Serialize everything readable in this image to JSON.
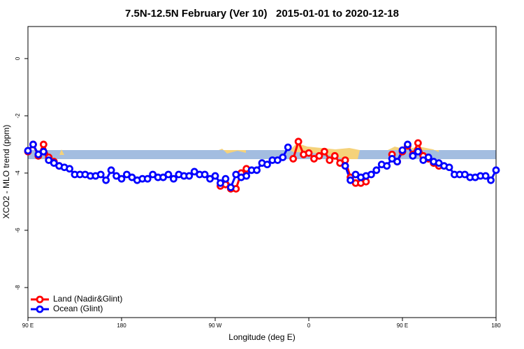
{
  "chart_data": {
    "type": "line",
    "title": "7.5N-12.5N February (Ver 10)   2015-01-01 to 2020-12-18",
    "x_label": "Longitude (deg E)",
    "y_label": "XCO2 - MLO trend (ppm)",
    "xlim": [
      90,
      540
    ],
    "ylim": [
      -9.05,
      1.12
    ],
    "xticks": [
      {
        "value": 90,
        "label": "90 E"
      },
      180,
      {
        "value": 270,
        "label": "90 W"
      },
      {
        "value": 360,
        "label": "0"
      },
      {
        "value": 450,
        "label": "90 E"
      },
      {
        "value": 540,
        "label": "180"
      }
    ],
    "yticks": [
      0,
      -2,
      -4,
      -6,
      -8
    ],
    "legend": "bottom-left",
    "x": [
      90,
      95,
      100,
      105,
      110,
      115,
      120,
      125,
      130,
      135,
      140,
      145,
      150,
      155,
      160,
      165,
      170,
      175,
      180,
      185,
      190,
      195,
      200,
      205,
      210,
      215,
      220,
      225,
      230,
      235,
      240,
      245,
      250,
      255,
      260,
      265,
      270,
      275,
      280,
      285,
      290,
      295,
      300,
      305,
      310,
      315,
      320,
      325,
      330,
      335,
      340,
      345,
      350,
      355,
      360,
      365,
      370,
      375,
      380,
      385,
      390,
      395,
      400,
      405,
      410,
      415,
      420,
      425,
      430,
      435,
      440,
      445,
      450,
      455,
      460,
      465,
      470,
      475,
      480,
      485,
      490,
      495,
      500,
      505,
      510,
      515,
      520,
      525,
      530,
      535,
      540
    ],
    "series": [
      {
        "name": "Land (Nadir&Glint)",
        "color": "#ff0000",
        "values": [
          -3.25,
          -3.0,
          -3.4,
          -3.0,
          -3.45,
          -3.6,
          -3.75,
          null,
          null,
          null,
          null,
          null,
          null,
          null,
          null,
          null,
          null,
          null,
          null,
          null,
          null,
          null,
          null,
          null,
          null,
          null,
          null,
          null,
          null,
          null,
          null,
          null,
          null,
          null,
          null,
          null,
          null,
          -4.45,
          -4.4,
          -4.55,
          -4.55,
          -4.0,
          -3.85,
          null,
          null,
          null,
          null,
          null,
          null,
          null,
          null,
          -3.5,
          -2.9,
          -3.35,
          -3.3,
          -3.5,
          -3.4,
          -3.25,
          -3.55,
          -3.4,
          -3.65,
          -3.55,
          -4.15,
          -4.35,
          -4.35,
          -4.3,
          null,
          null,
          null,
          null,
          -3.35,
          -3.6,
          -3.25,
          -3.05,
          -3.35,
          -2.95,
          -3.4,
          -3.5,
          -3.65,
          -3.75,
          null,
          null,
          null,
          null,
          null,
          null,
          null,
          null,
          null,
          null,
          null
        ]
      },
      {
        "name": "Ocean (Glint)",
        "color": "#0000ff",
        "values": [
          -3.22,
          -3.0,
          -3.35,
          -3.25,
          -3.55,
          -3.65,
          -3.75,
          -3.8,
          -3.85,
          -4.05,
          -4.05,
          -4.05,
          -4.1,
          -4.1,
          -4.05,
          -4.25,
          -3.9,
          -4.1,
          -4.2,
          -4.05,
          -4.15,
          -4.25,
          -4.2,
          -4.2,
          -4.05,
          -4.15,
          -4.15,
          -4.05,
          -4.2,
          -4.05,
          -4.1,
          -4.1,
          -3.95,
          -4.05,
          -4.05,
          -4.2,
          -4.1,
          -4.35,
          -4.2,
          -4.5,
          -4.05,
          -4.15,
          -4.1,
          -3.9,
          -3.9,
          -3.65,
          -3.7,
          -3.55,
          -3.55,
          -3.45,
          -3.1,
          null,
          null,
          null,
          null,
          null,
          null,
          null,
          null,
          null,
          null,
          -3.75,
          -4.25,
          -4.05,
          -4.15,
          -4.1,
          -4.05,
          -3.9,
          -3.7,
          -3.75,
          -3.5,
          -3.6,
          -3.2,
          -3.0,
          -3.4,
          -3.25,
          -3.55,
          -3.45,
          -3.6,
          -3.65,
          -3.75,
          -3.8,
          -4.05,
          -4.05,
          -4.05,
          -4.15,
          -4.15,
          -4.1,
          -4.1,
          -4.25,
          -3.9
        ]
      }
    ]
  }
}
